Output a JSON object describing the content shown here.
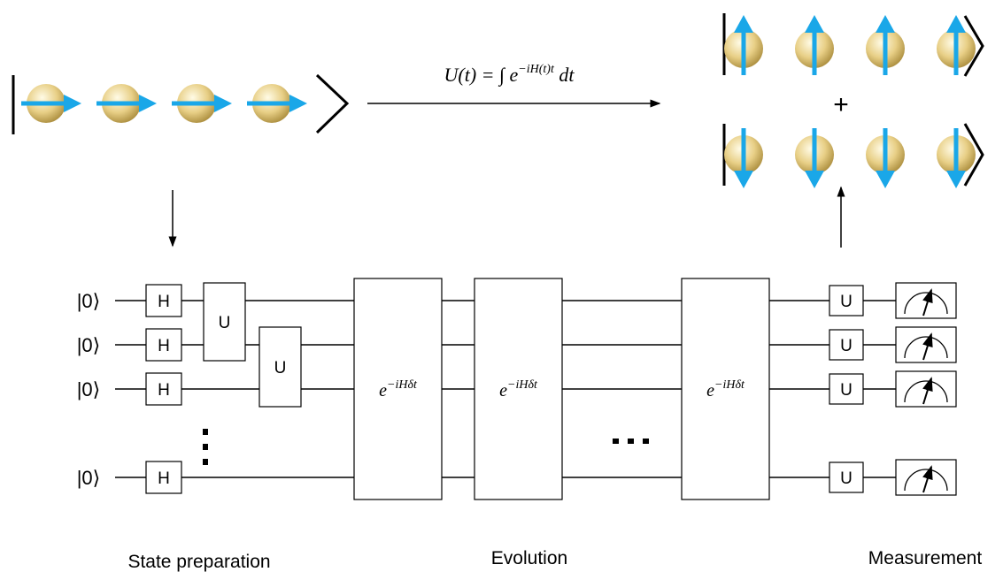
{
  "equation": {
    "base": "U(t) = ∫ e",
    "exponent": "−iH(t)t",
    "tail": " dt"
  },
  "plus": "+",
  "circuit": {
    "inputs": [
      "|0⟩",
      "|0⟩",
      "|0⟩",
      "|0⟩"
    ],
    "hadamards": [
      "H",
      "H",
      "H",
      "H"
    ],
    "entanglers": [
      "U",
      "U"
    ],
    "evolution": [
      {
        "base": "e",
        "exponent": "−iHδt"
      },
      {
        "base": "e",
        "exponent": "−iHδt"
      },
      {
        "base": "e",
        "exponent": "−iHδt"
      }
    ],
    "rotations": [
      "U",
      "U",
      "U",
      "U"
    ]
  },
  "stages": [
    "State preparation",
    "Evolution",
    "Measurement"
  ]
}
